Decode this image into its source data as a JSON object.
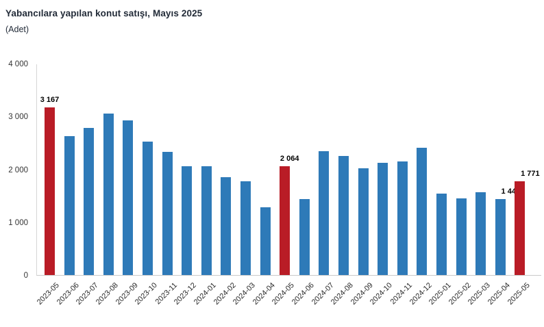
{
  "chart_data": {
    "type": "bar",
    "title": "Yabancılara yapılan konut satışı, Mayıs 2025",
    "unit_label": "(Adet)",
    "xlabel": "",
    "ylabel": "Adet",
    "categories": [
      "2023-05",
      "2023-06",
      "2023-07",
      "2023-08",
      "2023-09",
      "2023-10",
      "2023-11",
      "2023-12",
      "2024-01",
      "2024-02",
      "2024-03",
      "2024-04",
      "2024-05",
      "2024-06",
      "2024-07",
      "2024-08",
      "2024-09",
      "2024-10",
      "2024-11",
      "2024-12",
      "2025-01",
      "2025-02",
      "2025-03",
      "2025-04",
      "2025-05"
    ],
    "values": [
      3167,
      2625,
      2790,
      3050,
      2925,
      2530,
      2335,
      2060,
      2060,
      1850,
      1780,
      1280,
      2064,
      1440,
      2340,
      2255,
      2020,
      2120,
      2145,
      2410,
      1540,
      1450,
      1570,
      1440,
      1771
    ],
    "labeled_points": [
      {
        "category": "2023-05",
        "label": "3 167"
      },
      {
        "category": "2024-05",
        "label": "2 064"
      },
      {
        "category": "2025-04",
        "label": "1 440"
      },
      {
        "category": "2025-05",
        "label": "1 771"
      }
    ],
    "highlighted_categories": [
      "2023-05",
      "2024-05",
      "2025-05"
    ],
    "colors": {
      "bar_default": "#2e7ab8",
      "bar_highlight": "#b91c26",
      "axis_line": "#d6d6d6",
      "title_text": "#222b38",
      "tick_text": "#333333",
      "value_label_text": "#000000"
    },
    "y_axis": {
      "min": 0,
      "max": 4000,
      "tick_interval": 1000,
      "tick_labels_top_to_bottom": [
        "4 000",
        "3 000",
        "2 000",
        "1 000",
        "0"
      ]
    },
    "grid": false,
    "legend": false
  }
}
